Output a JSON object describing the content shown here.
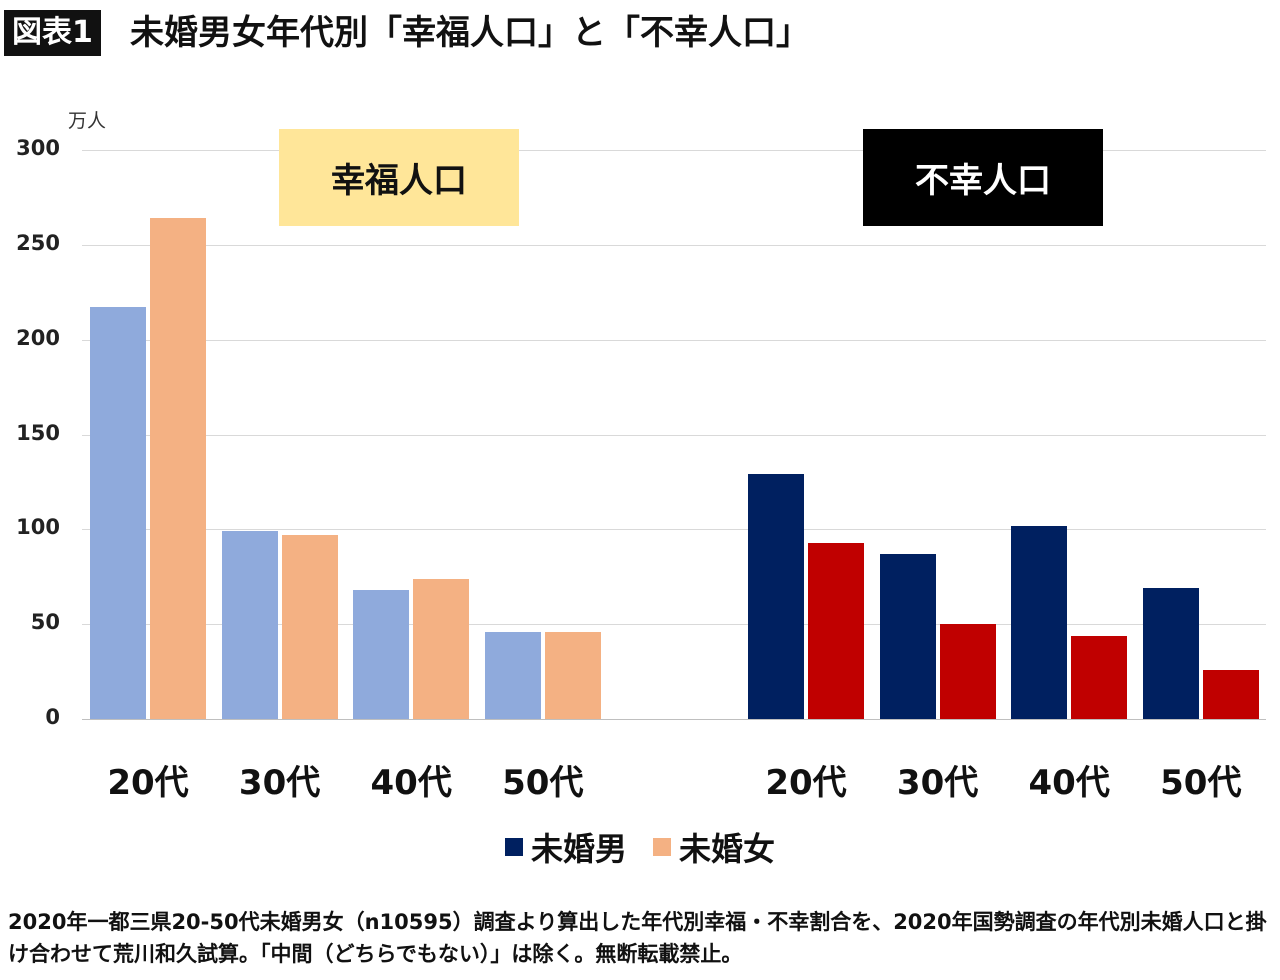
{
  "header": {
    "badge": "図表1",
    "title": "未婚男女年代別「幸福人口」と「不幸人口」"
  },
  "chart_data": {
    "type": "bar",
    "ylabel": "万人",
    "ylim": [
      0,
      300
    ],
    "yticks": [
      0,
      50,
      100,
      150,
      200,
      250,
      300
    ],
    "grid": true,
    "legend_placement": "bottom",
    "categories": [
      "20代",
      "30代",
      "40代",
      "50代"
    ],
    "groups": [
      {
        "label": "幸福人口",
        "label_bg": "#ffe699",
        "label_color": "#111111",
        "series": [
          {
            "name": "未婚男",
            "color": "#8faadc",
            "values": [
              217,
              99,
              68,
              46
            ]
          },
          {
            "name": "未婚女",
            "color": "#f4b183",
            "values": [
              264,
              97,
              74,
              46
            ]
          }
        ]
      },
      {
        "label": "不幸人口",
        "label_bg": "#000000",
        "label_color": "#ffffff",
        "series": [
          {
            "name": "未婚男",
            "color": "#002060",
            "values": [
              129,
              87,
              102,
              69
            ]
          },
          {
            "name": "未婚女",
            "color": "#c00000",
            "values": [
              93,
              50,
              44,
              26
            ]
          }
        ]
      }
    ],
    "legend": [
      {
        "name": "未婚男",
        "color": "#002060"
      },
      {
        "name": "未婚女",
        "color": "#f4b183"
      }
    ]
  },
  "note": "2020年一都三県20-50代未婚男女（n10595）調査より算出した年代別幸福・不幸割合を、2020年国勢調査の年代別未婚人口と掛け合わせて荒川和久試算。「中間（どちらでもない）」は除く。無断転載禁止。"
}
